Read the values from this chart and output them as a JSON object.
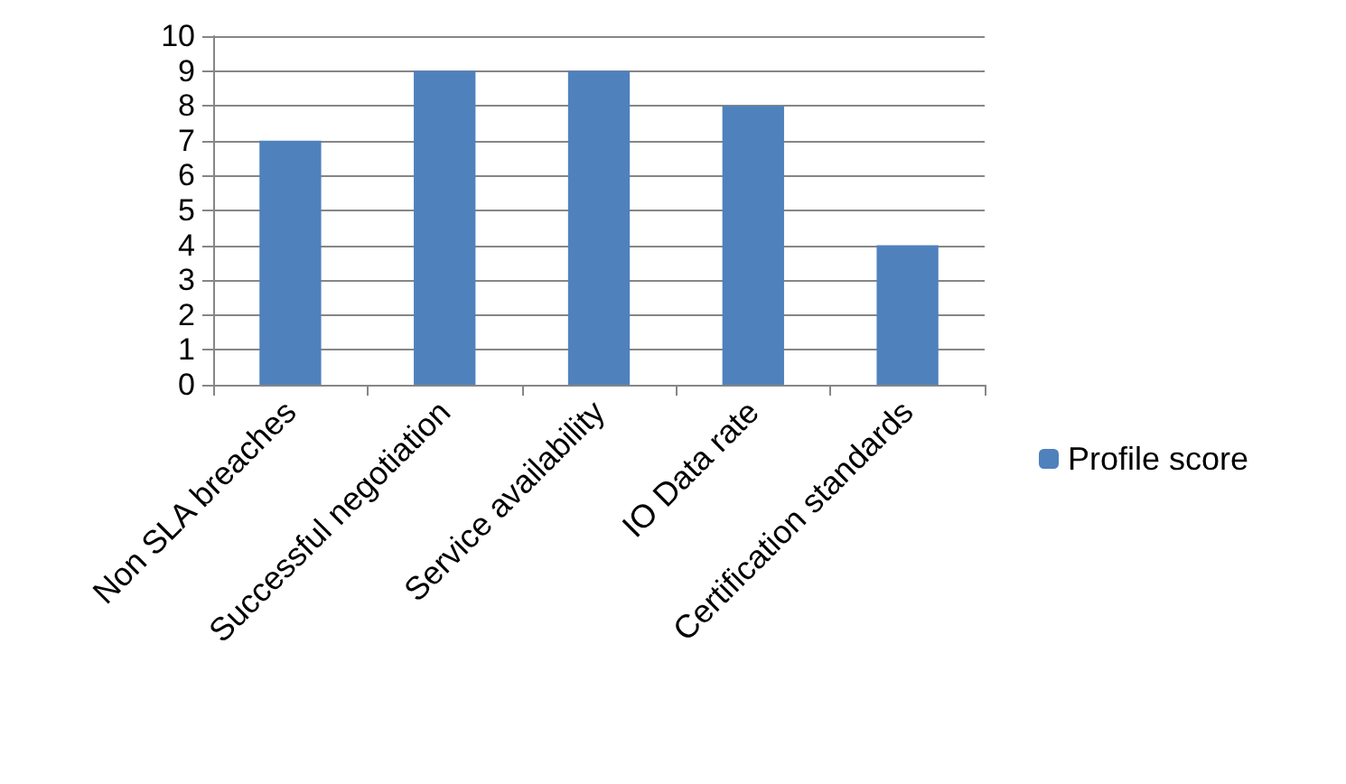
{
  "chart_data": {
    "type": "bar",
    "categories": [
      "Non SLA breaches",
      "Successful negotiation",
      "Service availability",
      "IO Data rate",
      "Certification standards"
    ],
    "series": [
      {
        "name": "Profile score",
        "color": "#4f81bd",
        "values": [
          7,
          9,
          9,
          8,
          4
        ]
      }
    ],
    "ylim": [
      0,
      10
    ],
    "yticks": [
      0,
      1,
      2,
      3,
      4,
      5,
      6,
      7,
      8,
      9,
      10
    ],
    "grid": "y",
    "legend": "right"
  }
}
